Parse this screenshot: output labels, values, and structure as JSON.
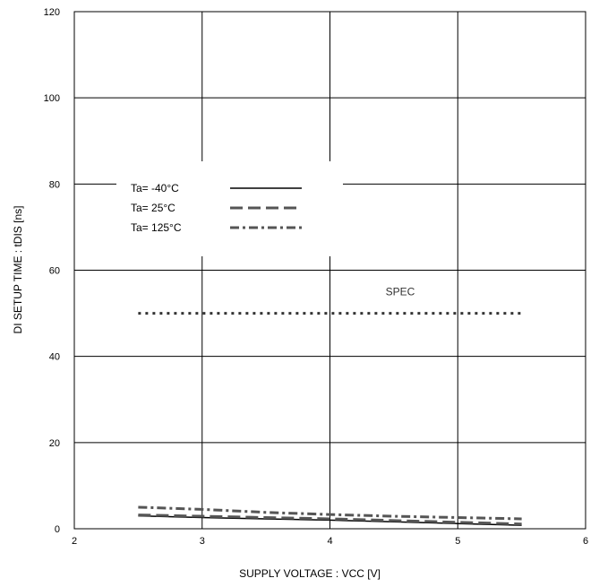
{
  "chart_data": {
    "type": "line",
    "xlabel": "SUPPLY VOLTAGE : VCC [V]",
    "ylabel": "DI SETUP TIME : tDIS [ns]",
    "xlim": [
      2,
      6
    ],
    "ylim": [
      0,
      120
    ],
    "x_ticks": [
      "2",
      "3",
      "4",
      "5",
      "6"
    ],
    "y_ticks": [
      "0",
      "20",
      "40",
      "60",
      "80",
      "100",
      "120"
    ],
    "grid": true,
    "legend_position": "upper-left",
    "series": [
      {
        "name": "Ta= -40°C",
        "style": "solid",
        "color": "#000000",
        "x": [
          2.5,
          3.0,
          3.5,
          4.0,
          4.5,
          5.0,
          5.5
        ],
        "y": [
          3.0,
          2.6,
          2.3,
          2.0,
          1.6,
          1.2,
          0.8
        ]
      },
      {
        "name": "Ta=  25°C",
        "style": "dashed",
        "color": "#555555",
        "x": [
          2.5,
          3.0,
          3.5,
          4.0,
          4.5,
          5.0,
          5.5
        ],
        "y": [
          3.2,
          2.9,
          2.6,
          2.3,
          1.9,
          1.5,
          1.1
        ]
      },
      {
        "name": "Ta= 125°C",
        "style": "dashdot",
        "color": "#555555",
        "x": [
          2.5,
          3.0,
          3.5,
          4.0,
          4.5,
          5.0,
          5.5
        ],
        "y": [
          5.0,
          4.5,
          3.8,
          3.3,
          2.9,
          2.6,
          2.3
        ]
      }
    ],
    "spec": {
      "label": "SPEC",
      "x": [
        2.5,
        5.5
      ],
      "y": 50
    }
  }
}
